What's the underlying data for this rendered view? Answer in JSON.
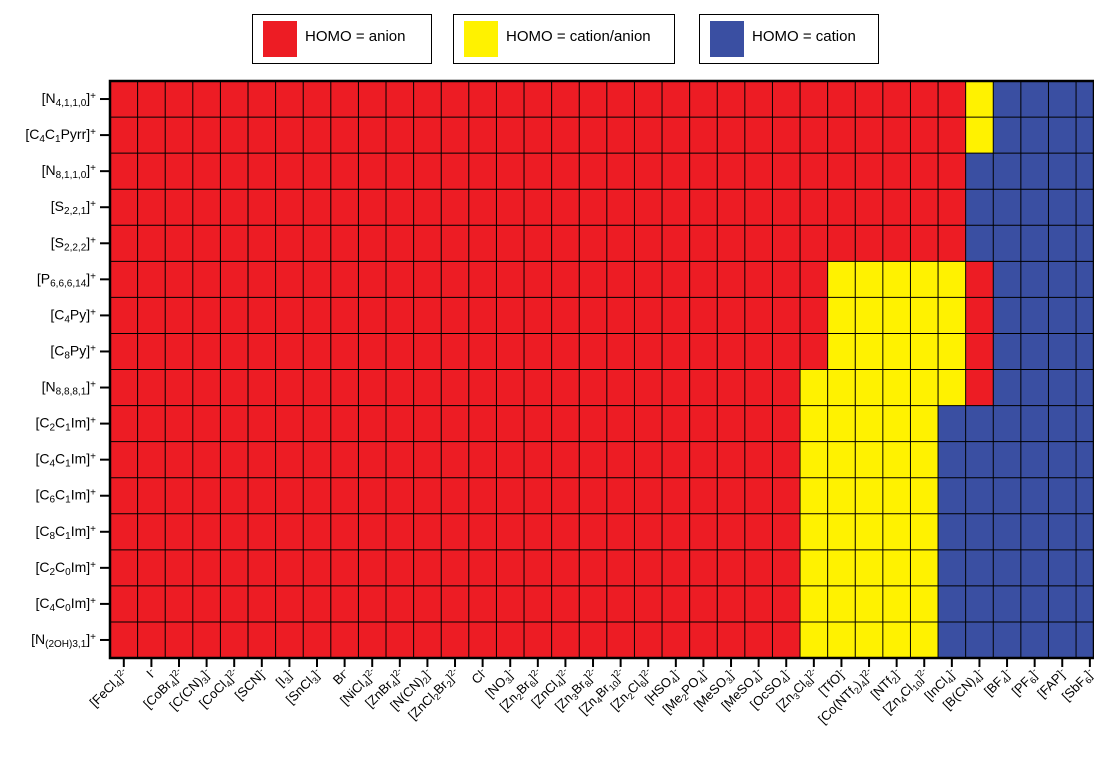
{
  "chart_data": {
    "type": "heatmap",
    "title": "",
    "xlabel": "",
    "ylabel": "",
    "legend": {
      "placement": "top",
      "entries": [
        {
          "label": "HOMO = anion",
          "code": "A",
          "color": "#ed1c24"
        },
        {
          "label": "HOMO = cation/anion",
          "code": "Y",
          "color": "#fff200"
        },
        {
          "label": "HOMO = cation",
          "code": "C",
          "color": "#3a4fa2"
        }
      ]
    },
    "rows": [
      {
        "base": "[N",
        "sub": "4,1,1,0",
        "after": "]",
        "sup": "+"
      },
      {
        "base": "[C",
        "sub": "4",
        "after": "C",
        "sub2": "1",
        "after2": "Pyrr]",
        "sup": "+"
      },
      {
        "base": "[N",
        "sub": "8,1,1,0",
        "after": "]",
        "sup": "+"
      },
      {
        "base": "[S",
        "sub": "2,2,1",
        "after": "]",
        "sup": "+"
      },
      {
        "base": "[S",
        "sub": "2,2,2",
        "after": "]",
        "sup": "+"
      },
      {
        "base": "[P",
        "sub": "6,6,6,14",
        "after": "]",
        "sup": "+"
      },
      {
        "base": "[C",
        "sub": "4",
        "after": "Py]",
        "sup": "+"
      },
      {
        "base": "[C",
        "sub": "8",
        "after": "Py]",
        "sup": "+"
      },
      {
        "base": "[N",
        "sub": "8,8,8,1",
        "after": "]",
        "sup": "+"
      },
      {
        "base": "[C",
        "sub": "2",
        "after": "C",
        "sub2": "1",
        "after2": "Im]",
        "sup": "+"
      },
      {
        "base": "[C",
        "sub": "4",
        "after": "C",
        "sub2": "1",
        "after2": "Im]",
        "sup": "+"
      },
      {
        "base": "[C",
        "sub": "6",
        "after": "C",
        "sub2": "1",
        "after2": "Im]",
        "sup": "+"
      },
      {
        "base": "[C",
        "sub": "8",
        "after": "C",
        "sub2": "1",
        "after2": "Im]",
        "sup": "+"
      },
      {
        "base": "[C",
        "sub": "2",
        "after": "C",
        "sub2": "0",
        "after2": "Im]",
        "sup": "+"
      },
      {
        "base": "[C",
        "sub": "4",
        "after": "C",
        "sub2": "0",
        "after2": "Im]",
        "sup": "+"
      },
      {
        "base": "[N",
        "sub": "(2OH)3,1",
        "after": "]",
        "sup": "+"
      }
    ],
    "columns": [
      {
        "base": "[FeCl",
        "sub": "4",
        "after": "]",
        "sup": "2-"
      },
      {
        "base": "I",
        "sup": "-"
      },
      {
        "base": "[CoBr",
        "sub": "4",
        "after": "]",
        "sup": "2-"
      },
      {
        "base": "[C(CN)",
        "sub": "3",
        "after": "]",
        "sup": "-"
      },
      {
        "base": "[CoCl",
        "sub": "4",
        "after": "]",
        "sup": "2-"
      },
      {
        "base": "[SCN]",
        "sup": "-"
      },
      {
        "base": "[I",
        "sub": "3",
        "after": "]",
        "sup": "-"
      },
      {
        "base": "[SnCl",
        "sub": "3",
        "after": "]",
        "sup": "-"
      },
      {
        "base": "Br",
        "sup": "-"
      },
      {
        "base": "[NiCl",
        "sub": "4",
        "after": "]",
        "sup": "2-"
      },
      {
        "base": "[ZnBr",
        "sub": "4",
        "after": "]",
        "sup": "2-"
      },
      {
        "base": "[N(CN)",
        "sub": "2",
        "after": "]",
        "sup": "-"
      },
      {
        "base": "[ZnCl",
        "sub": "2",
        "after": "Br",
        "sub2": "2",
        "after2": "]",
        "sup": "2-"
      },
      {
        "base": "Cl",
        "sup": "-"
      },
      {
        "base": "[NO",
        "sub": "3",
        "after": "]",
        "sup": "-"
      },
      {
        "base": "[Zn",
        "sub": "2",
        "after": "Br",
        "sub2": "6",
        "after2": "]",
        "sup": "2-"
      },
      {
        "base": "[ZnCl",
        "sub": "4",
        "after": "]",
        "sup": "2-"
      },
      {
        "base": "[Zn",
        "sub": "3",
        "after": "Br",
        "sub2": "8",
        "after2": "]",
        "sup": "2-"
      },
      {
        "base": "[Zn",
        "sub": "4",
        "after": "Br",
        "sub2": "10",
        "after2": "]",
        "sup": "2-"
      },
      {
        "base": "[Zn",
        "sub": "2",
        "after": "Cl",
        "sub2": "6",
        "after2": "]",
        "sup": "2-"
      },
      {
        "base": "[HSO",
        "sub": "4",
        "after": "]",
        "sup": "-"
      },
      {
        "base": "[Me",
        "sub": "2",
        "after": "PO",
        "sub2": "4",
        "after2": "]",
        "sup": "-"
      },
      {
        "base": "[MeSO",
        "sub": "3",
        "after": "]",
        "sup": "-"
      },
      {
        "base": "[MeSO",
        "sub": "4",
        "after": "]",
        "sup": "-"
      },
      {
        "base": "[OcSO",
        "sub": "4",
        "after": "]",
        "sup": "-"
      },
      {
        "base": "[Zn",
        "sub": "3",
        "after": "Cl",
        "sub2": "8",
        "after2": "]",
        "sup": "2-"
      },
      {
        "base": "[TfO]",
        "sup": "-"
      },
      {
        "base": "[Co(NTf",
        "sub": "2",
        "after": ")",
        "sub2": "4",
        "after2": "]",
        "sup": "2-"
      },
      {
        "base": "[NTf",
        "sub": "2",
        "after": "]",
        "sup": "-"
      },
      {
        "base": "[Zn",
        "sub": "4",
        "after": "Cl",
        "sub2": "10",
        "after2": "]",
        "sup": "2-"
      },
      {
        "base": "[InCl",
        "sub": "4",
        "after": "]",
        "sup": "-"
      },
      {
        "base": "[B(CN)",
        "sub": "4",
        "after": "]",
        "sup": "-"
      },
      {
        "base": "[BF",
        "sub": "4",
        "after": "]",
        "sup": "-"
      },
      {
        "base": "[PF",
        "sub": "6",
        "after": "]",
        "sup": "-"
      },
      {
        "base": "[FAP]",
        "sup": "-"
      },
      {
        "base": "[SbF",
        "sub": "6",
        "after": "]",
        "sup": "-"
      }
    ],
    "cells": [
      "AAAAAAAAAAAAAAAAAAAAAAAAAAAAAAAYCCCC",
      "AAAAAAAAAAAAAAAAAAAAAAAAAAAAAAAYCCCC",
      "AAAAAAAAAAAAAAAAAAAAAAAAAAAAAAACCCCC",
      "AAAAAAAAAAAAAAAAAAAAAAAAAAAAAAACCCCC",
      "AAAAAAAAAAAAAAAAAAAAAAAAAAAAAAACCCCC",
      "AAAAAAAAAAAAAAAAAAAAAAAAAAYYYYYACCCC",
      "AAAAAAAAAAAAAAAAAAAAAAAAAAYYYYYACCCC",
      "AAAAAAAAAAAAAAAAAAAAAAAAAAYYYYYACCCC",
      "AAAAAAAAAAAAAAAAAAAAAAAAAYYYYYYACCCC",
      "AAAAAAAAAAAAAAAAAAAAAAAAAYYYYYCCCCCC",
      "AAAAAAAAAAAAAAAAAAAAAAAAAYYYYYCCCCCC",
      "AAAAAAAAAAAAAAAAAAAAAAAAAYYYYYCCCCCC",
      "AAAAAAAAAAAAAAAAAAAAAAAAAYYYYYCCCCCC",
      "AAAAAAAAAAAAAAAAAAAAAAAAAYYYYYCCCCCC",
      "AAAAAAAAAAAAAAAAAAAAAAAAAYYYYYCCCCCC",
      "AAAAAAAAAAAAAAAAAAAAAAAAAYYYYYCCCCCC"
    ],
    "grid": true
  }
}
